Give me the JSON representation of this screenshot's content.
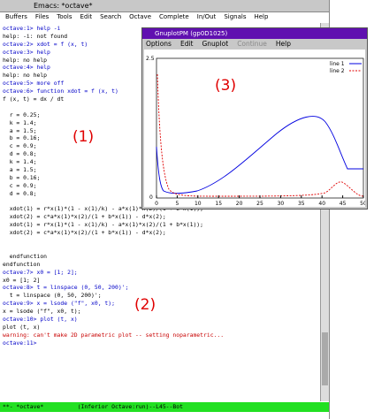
{
  "emacs": {
    "title": "Emacs: *octave*",
    "menu": [
      "Buffers",
      "Files",
      "Tools",
      "Edit",
      "Search",
      "Octave",
      "Complete",
      "In/Out",
      "Signals",
      "Help"
    ],
    "lines": [
      "octave:1> help -i",
      "help: -i: not found",
      "octave:2> xdot = f (x, t)",
      "octave:3> help",
      "help: no help",
      "octave:4> help",
      "help: no help",
      "octave:5> more off",
      "octave:6> function xdot = f (x, t)",
      "f (x, t) = dx / dt",
      "",
      "  r = 0.25;",
      "  k = 1.4;",
      "  a = 1.5;",
      "  b = 0.16;",
      "  c = 0.9;",
      "  d = 0.8;",
      "  k = 1.4;",
      "  a = 1.5;",
      "  b = 0.16;",
      "  c = 0.9;",
      "  d = 0.8;",
      "",
      "  xdot(1) = r*x(1)*(1 - x(1)/k) - a*x(1)*x(2)/(1 + b*x(1));",
      "  xdot(2) = c*a*x(1)*x(2)/(1 + b*x(1)) - d*x(2);",
      "  xdot(1) = r*x(1)*(1 - x(1)/k) - a*x(1)*x(2)/(1 + b*x(1));",
      "  xdot(2) = c*a*x(1)*x(2)/(1 + b*x(1)) - d*x(2);",
      "",
      "",
      "  endfunction",
      "endfunction",
      "octave:7> x0 = [1; 2];",
      "x0 = [1; 2]",
      "octave:8> t = linspace (0, 50, 200)';",
      "  t = linspace (0, 50, 200)';",
      "octave:9> x = lsode (\"f\", x0, t);",
      "x = lsode (\"f\", x0, t);",
      "octave:10> plot (t, x)",
      "plot (t, x)",
      "warning: can't make 2D parametric plot -- setting noparametric...",
      "octave:11>"
    ],
    "mode_line": "**- *octave*          (Inferior Octave:run)--L45--Bot"
  },
  "annotations": [
    "(1)",
    "(2)",
    "(3)"
  ],
  "gnuplot": {
    "title": "GnuplotPM (gp0D1025)",
    "menu": [
      "Options",
      "Edit",
      "Gnuplot",
      "Continue",
      "Help"
    ],
    "legend": [
      "line 1",
      "line 2"
    ],
    "yticks": [
      "2.5",
      "0"
    ],
    "xticks": [
      "0",
      "5",
      "10",
      "15",
      "20",
      "25",
      "30",
      "35",
      "40",
      "45",
      "50"
    ]
  }
}
